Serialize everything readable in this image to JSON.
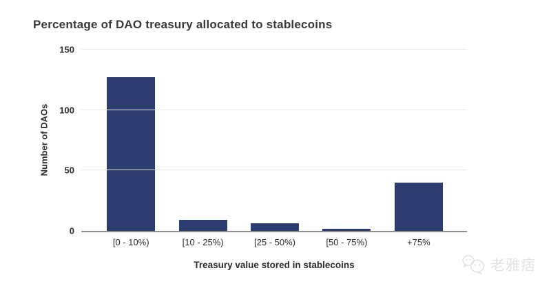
{
  "chart": {
    "title": "Percentage of DAO treasury allocated to stablecoins",
    "xlabel": "Treasury value stored in stablecoins",
    "ylabel": "Number of DAOs"
  },
  "chart_data": {
    "type": "bar",
    "title": "Percentage of DAO treasury allocated to stablecoins",
    "categories": [
      "[0 - 10%)",
      "[10 - 25%)",
      "[25 - 50%)",
      "[50 - 75%)",
      "+75%"
    ],
    "values": [
      127,
      9,
      6,
      2,
      40
    ],
    "xlabel": "Treasury value stored in stablecoins",
    "ylabel": "Number of DAOs",
    "ylim": [
      0,
      150
    ],
    "yticks": [
      0,
      50,
      100,
      150
    ],
    "grid": "horizontal",
    "legend": "none",
    "bar_color": "#2d3c71"
  },
  "colors": {
    "bar": "#2d3c71",
    "title_text": "#38383c",
    "axis_text": "#2b2b2e",
    "gridline": "#e8e8e8",
    "baseline": "#8e8e8e",
    "watermark": "#e2e2e2",
    "background": "#ffffff"
  },
  "watermark": {
    "icon": "wechat-icon",
    "text": "老雅痞"
  }
}
